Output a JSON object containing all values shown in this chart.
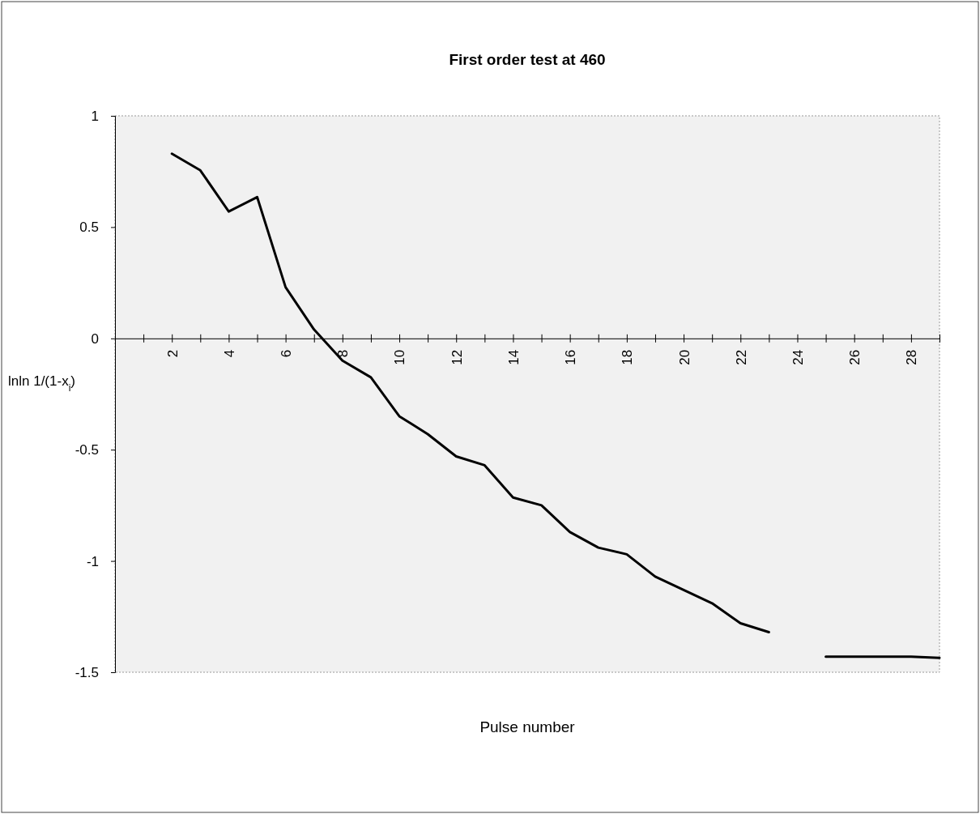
{
  "chart_data": {
    "type": "line",
    "title": "First order test at 460",
    "xlabel": "Pulse number",
    "ylabel": "lnln 1/(1-x$_{i}$)",
    "x": [
      2,
      3,
      4,
      5,
      6,
      7,
      8,
      9,
      10,
      11,
      12,
      13,
      14,
      15,
      16,
      17,
      18,
      19,
      20,
      21,
      22,
      23,
      24,
      25,
      26,
      27,
      28,
      29
    ],
    "series": [
      {
        "color": "#000000",
        "values": [
          0.83,
          0.755,
          0.57,
          0.635,
          0.23,
          0.04,
          -0.1,
          -0.175,
          -0.35,
          -0.43,
          -0.53,
          -0.57,
          -0.715,
          -0.75,
          -0.87,
          -0.94,
          -0.97,
          -1.07,
          -1.13,
          -1.19,
          -1.28,
          -1.32,
          null,
          -1.43,
          -1.43,
          -1.43,
          -1.43,
          -1.435
        ]
      }
    ],
    "xlim": [
      0,
      29
    ],
    "xticks": [
      {
        "value": 1,
        "label": null
      },
      2,
      {
        "value": 3,
        "label": null
      },
      4,
      {
        "value": 5,
        "label": null
      },
      6,
      {
        "value": 7,
        "label": null
      },
      8,
      {
        "value": 9,
        "label": null
      },
      10,
      {
        "value": 11,
        "label": null
      },
      12,
      {
        "value": 13,
        "label": null
      },
      14,
      {
        "value": 15,
        "label": null
      },
      16,
      {
        "value": 17,
        "label": null
      },
      18,
      {
        "value": 19,
        "label": null
      },
      20,
      {
        "value": 21,
        "label": null
      },
      22,
      {
        "value": 23,
        "label": null
      },
      24,
      {
        "value": 25,
        "label": null
      },
      26,
      {
        "value": 27,
        "label": null
      },
      28,
      {
        "value": 29,
        "label": null
      }
    ],
    "ylim": [
      -1.5,
      1
    ],
    "yticks": [
      -1.5,
      -1,
      -0.5,
      0,
      0.5,
      1
    ],
    "marker": "none",
    "line_style": "solid"
  }
}
